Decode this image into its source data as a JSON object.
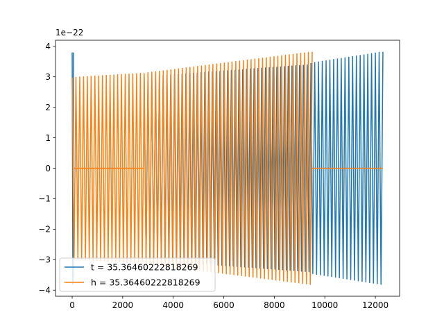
{
  "chart_data": {
    "type": "line",
    "title": "",
    "xlabel": "",
    "ylabel": "",
    "y_offset_label": "1e−22",
    "xlim": [
      -660,
      12960
    ],
    "ylim": [
      -4.2,
      4.2
    ],
    "xticks": [
      0,
      2000,
      4000,
      6000,
      8000,
      10000,
      12000
    ],
    "xtick_labels": [
      "0",
      "2000",
      "4000",
      "6000",
      "8000",
      "10000",
      "12000"
    ],
    "yticks": [
      -4,
      -3,
      -2,
      -1,
      0,
      1,
      2,
      3,
      4
    ],
    "ytick_labels": [
      "−4",
      "−3",
      "−2",
      "−1",
      "0",
      "1",
      "2",
      "3",
      "4"
    ],
    "grid": false,
    "legend": {
      "location": "lower-left",
      "entries": [
        "t = 35.36460222818269",
        "h = 35.36460222818269"
      ]
    },
    "series": [
      {
        "name": "t = 35.36460222818269",
        "color": "#1f77b4",
        "segments": [
          {
            "x_start": 0,
            "x_end": 55,
            "amplitude_start": 3.8,
            "amplitude_end": 3.8,
            "cycles": 1
          },
          {
            "x_start": 2850,
            "x_end": 9450,
            "amplitude_start": 3.0,
            "amplitude_end": 3.4,
            "cycles": 44
          },
          {
            "x_start": 9450,
            "x_end": 12300,
            "amplitude_start": 3.45,
            "amplitude_end": 3.82,
            "cycles": 19
          }
        ]
      },
      {
        "name": "h = 35.36460222818269",
        "color": "#ff7f0e",
        "segments": [
          {
            "x_start": 0,
            "x_end": 2850,
            "amplitude_start": 2.98,
            "amplitude_end": 3.12,
            "cycles": 19
          },
          {
            "x_start": 2850,
            "x_end": 9500,
            "amplitude_start": 3.12,
            "amplitude_end": 3.82,
            "cycles": 44
          }
        ],
        "flat_segments": [
          {
            "x_start": 80,
            "x_end": 2850,
            "y": 0
          },
          {
            "x_start": 9500,
            "x_end": 12300,
            "y": 0
          }
        ]
      }
    ]
  }
}
